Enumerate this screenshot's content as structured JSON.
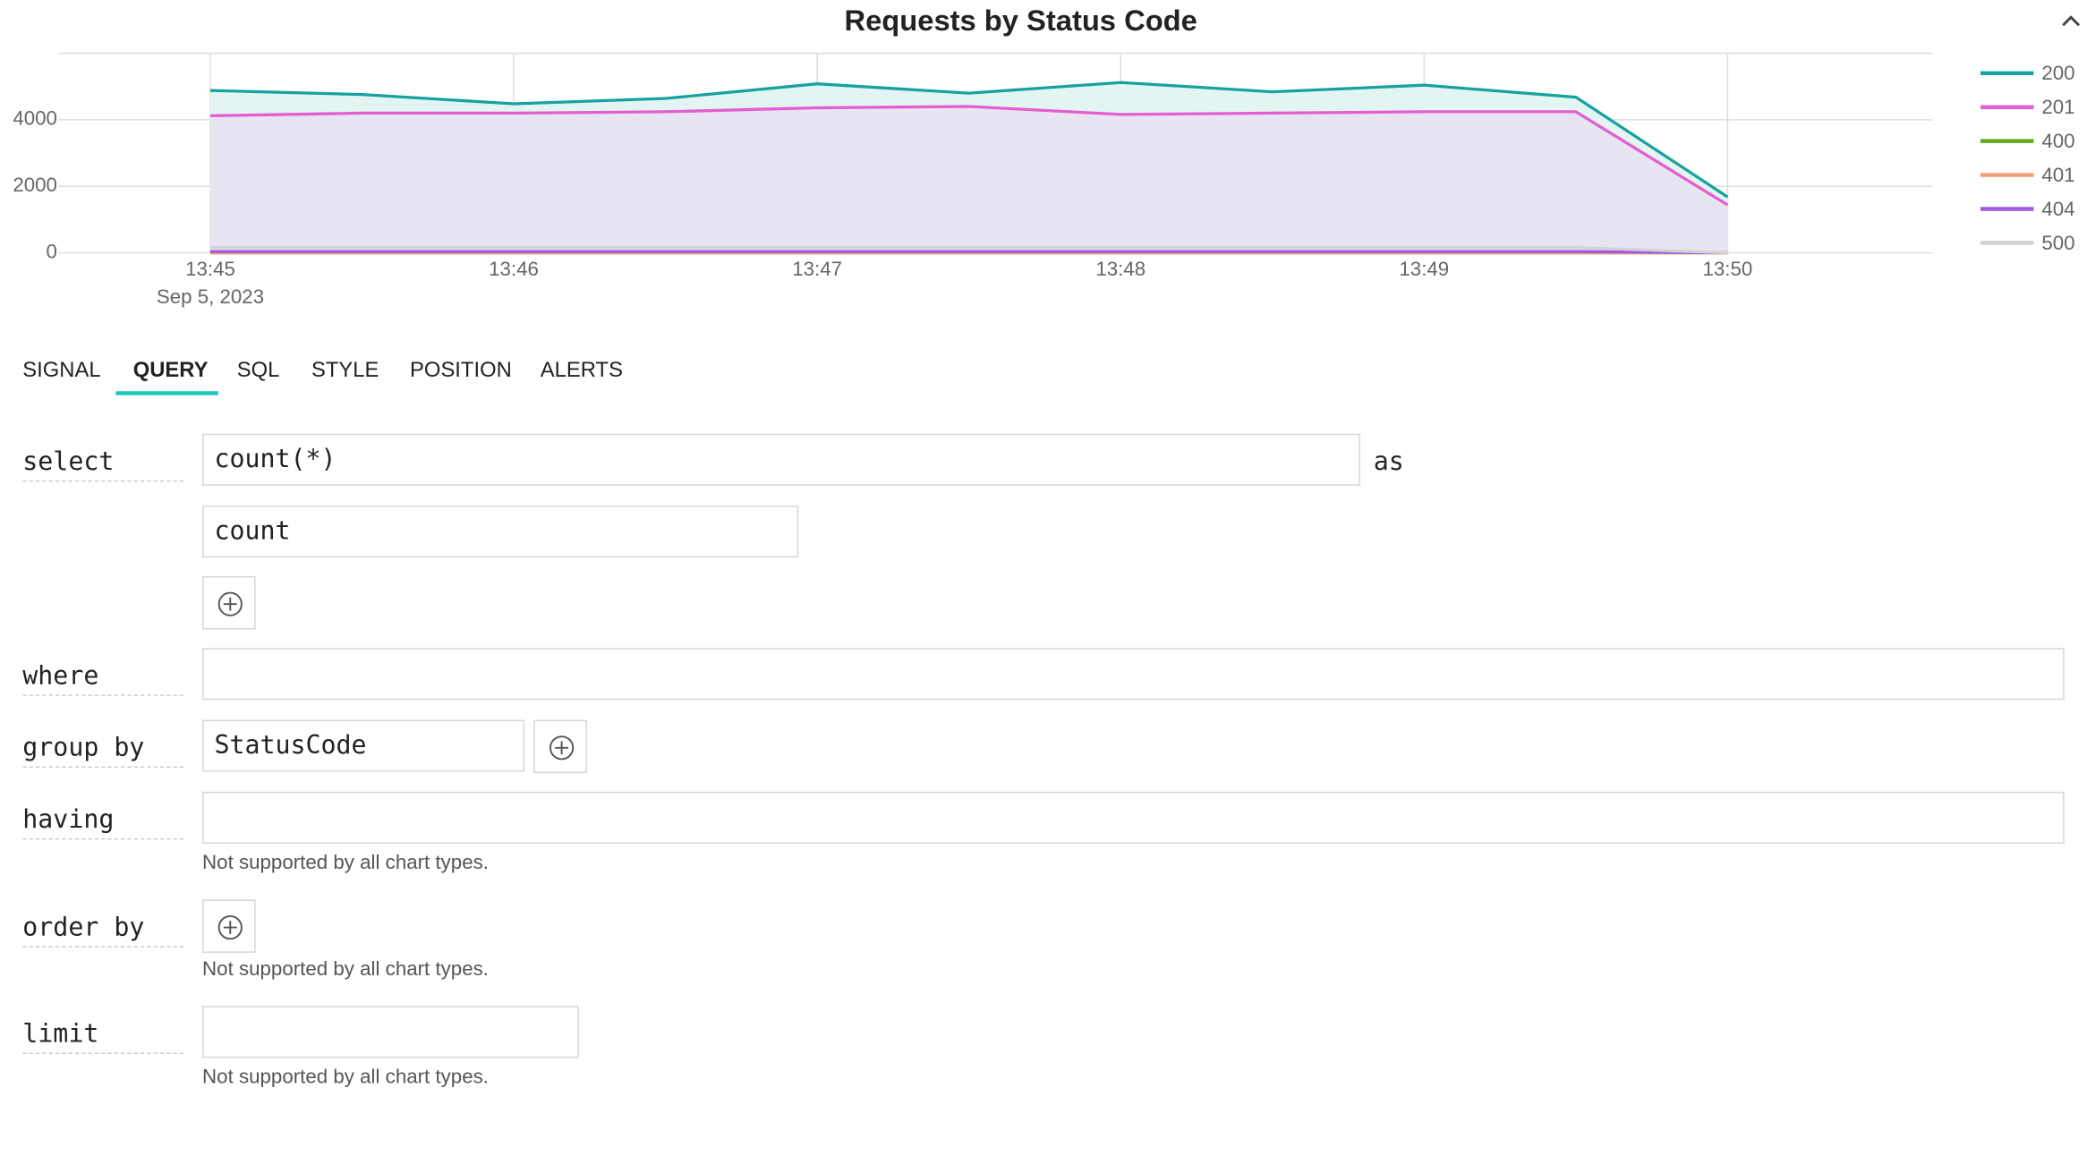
{
  "chart_data": {
    "type": "line",
    "title": "Requests by Status Code",
    "categories": [
      "13:45",
      null,
      "13:46",
      null,
      "13:47",
      null,
      "13:48",
      null,
      "13:49",
      null,
      "13:50"
    ],
    "x_date": "Sep 5, 2023",
    "series": [
      {
        "name": "200",
        "color": "#17a2a0",
        "fill": "#e3f5f3",
        "values": [
          4880,
          4760,
          4480,
          4640,
          5080,
          4800,
          5120,
          4840,
          5040,
          4680,
          1680
        ]
      },
      {
        "name": "201",
        "color": "#e35fd0",
        "fill": "#e8e5f3",
        "values": [
          4120,
          4200,
          4200,
          4240,
          4360,
          4400,
          4160,
          4200,
          4240,
          4240,
          1440
        ]
      },
      {
        "name": "400",
        "color": "#66a61e",
        "fill": "#e8e5f3",
        "values": [
          0,
          0,
          0,
          0,
          0,
          0,
          0,
          0,
          0,
          0,
          0
        ]
      },
      {
        "name": "401",
        "color": "#f49a78",
        "fill": "#e8e5f3",
        "values": [
          0,
          0,
          0,
          0,
          0,
          0,
          0,
          0,
          0,
          0,
          0
        ]
      },
      {
        "name": "404",
        "color": "#9b59e6",
        "fill": "#e8e5f3",
        "values": [
          40,
          40,
          40,
          40,
          40,
          40,
          40,
          40,
          40,
          40,
          0
        ]
      },
      {
        "name": "500",
        "color": "#d2d2d2",
        "fill": "#e8e5f3",
        "values": [
          160,
          160,
          160,
          160,
          160,
          160,
          160,
          160,
          160,
          160,
          0
        ]
      }
    ],
    "ylim": [
      0,
      6000
    ],
    "yticks": [
      0,
      2000,
      4000
    ],
    "grid": true,
    "legend": "right"
  },
  "query_editor": {
    "tabs": [
      "SIGNAL",
      "QUERY",
      "SQL",
      "STYLE",
      "POSITION",
      "ALERTS"
    ],
    "active_tab": 1,
    "fields": [
      {
        "label": "select",
        "value": "count(*)",
        "suffix": "as",
        "alias": "count"
      },
      {
        "label": "where"
      },
      {
        "label": "group by",
        "value": "StatusCode"
      },
      {
        "label": "having",
        "note": "Not supported by all chart types."
      },
      {
        "label": "order by",
        "note": "Not supported by all chart types."
      },
      {
        "label": "limit",
        "note": "Not supported by all chart types."
      }
    ]
  }
}
